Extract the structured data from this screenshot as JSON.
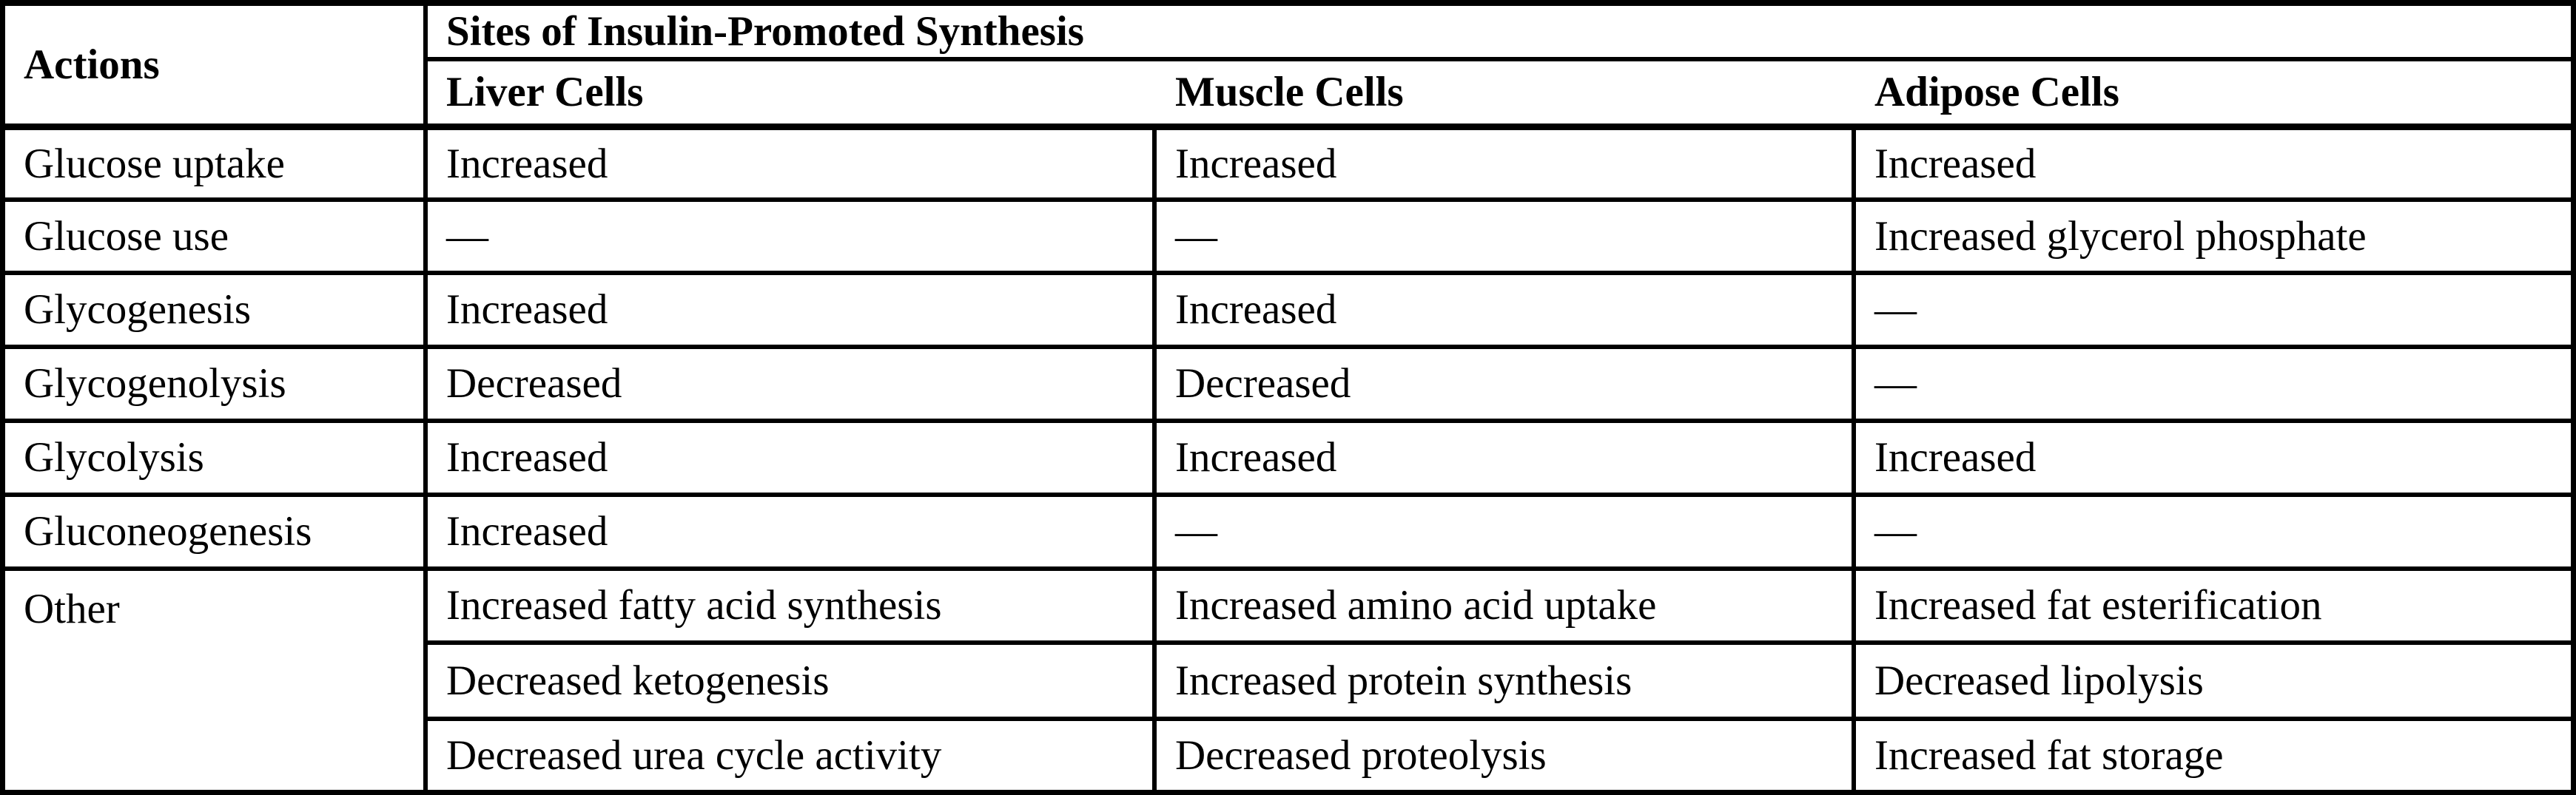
{
  "table": {
    "actions_header": "Actions",
    "span_header": "Sites of Insulin-Promoted Synthesis",
    "col_headers": {
      "liver": "Liver Cells",
      "muscle": "Muscle Cells",
      "adipose": "Adipose Cells"
    },
    "rows": [
      {
        "action": "Glucose uptake",
        "liver": "Increased",
        "muscle": "Increased",
        "adipose": "Increased"
      },
      {
        "action": "Glucose use",
        "liver": "—",
        "muscle": "—",
        "adipose": "Increased glycerol phosphate"
      },
      {
        "action": "Glycogenesis",
        "liver": "Increased",
        "muscle": "Increased",
        "adipose": "—"
      },
      {
        "action": "Glycogenolysis",
        "liver": "Decreased",
        "muscle": "Decreased",
        "adipose": "—"
      },
      {
        "action": "Glycolysis",
        "liver": "Increased",
        "muscle": "Increased",
        "adipose": "Increased"
      },
      {
        "action": "Gluconeogenesis",
        "liver": "Increased",
        "muscle": "—",
        "adipose": "—"
      }
    ],
    "other": {
      "action": "Other",
      "liver": [
        "Increased fatty acid synthesis",
        "Decreased ketogenesis",
        "Decreased urea cycle activity"
      ],
      "muscle": [
        "Increased amino acid uptake",
        "Increased protein synthesis",
        "Decreased proteolysis"
      ],
      "adipose": [
        "Increased fat esterification",
        "Decreased lipolysis",
        "Increased fat storage"
      ]
    },
    "colors": {
      "line": "#000000",
      "text": "#000000",
      "background": "#ffffff"
    }
  }
}
